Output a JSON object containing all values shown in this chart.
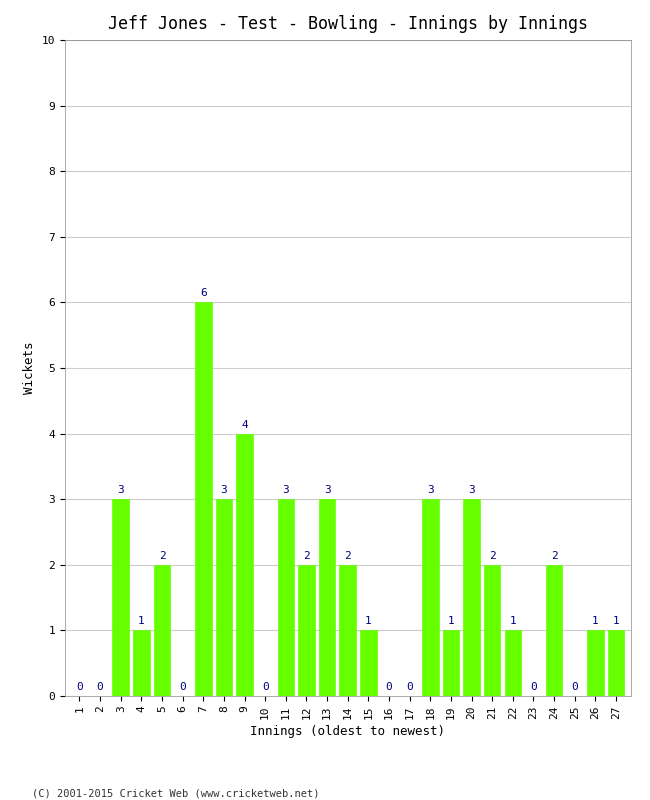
{
  "title": "Jeff Jones - Test - Bowling - Innings by Innings",
  "xlabel": "Innings (oldest to newest)",
  "ylabel": "Wickets",
  "innings": [
    1,
    2,
    3,
    4,
    5,
    6,
    7,
    8,
    9,
    10,
    11,
    12,
    13,
    14,
    15,
    16,
    17,
    18,
    19,
    20,
    21,
    22,
    23,
    24,
    25,
    26,
    27
  ],
  "wickets": [
    0,
    0,
    3,
    1,
    2,
    0,
    6,
    3,
    4,
    0,
    3,
    2,
    3,
    2,
    1,
    0,
    0,
    3,
    1,
    3,
    2,
    1,
    0,
    2,
    0,
    1,
    1
  ],
  "bar_color": "#66ff00",
  "bar_edge_color": "#66ff00",
  "label_color": "#000080",
  "ylim": [
    0,
    10
  ],
  "yticks": [
    0,
    1,
    2,
    3,
    4,
    5,
    6,
    7,
    8,
    9,
    10
  ],
  "background_color": "#ffffff",
  "grid_color": "#cccccc",
  "footer": "(C) 2001-2015 Cricket Web (www.cricketweb.net)",
  "title_fontsize": 12,
  "axis_label_fontsize": 9,
  "tick_fontsize": 8,
  "bar_label_fontsize": 8
}
